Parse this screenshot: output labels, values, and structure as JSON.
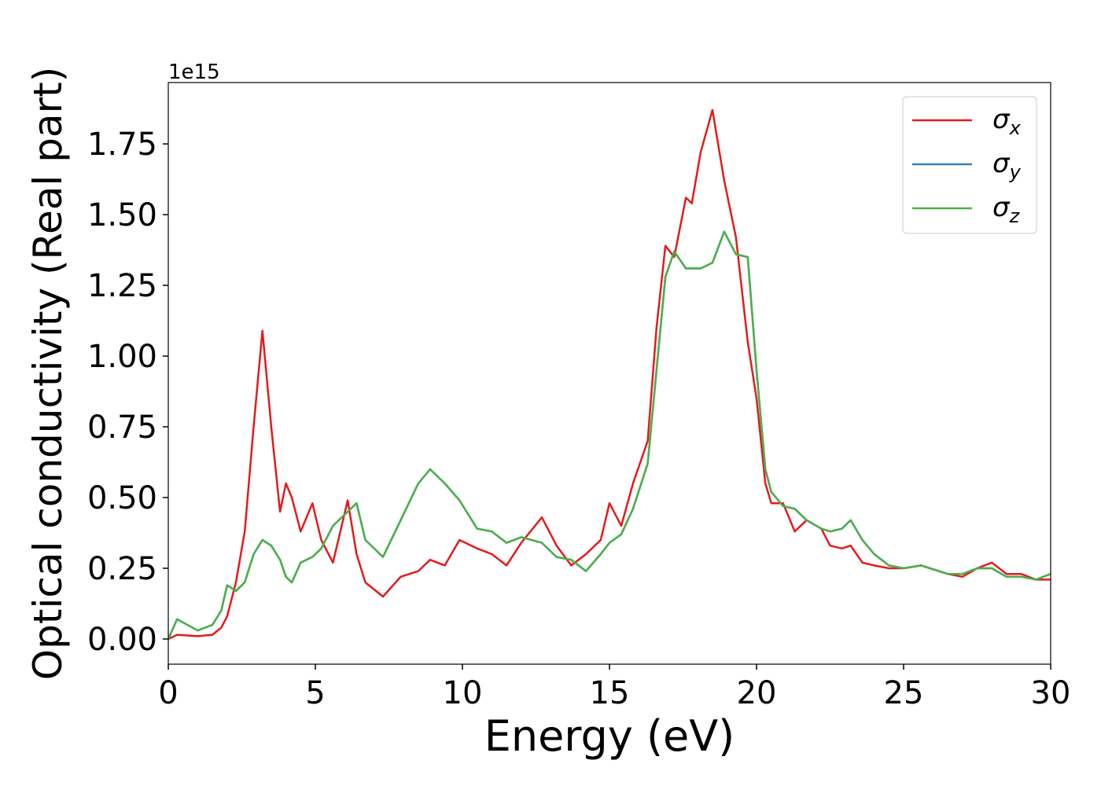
{
  "chart_data": {
    "type": "line",
    "xlabel": "Energy (eV)",
    "ylabel": "Optical conductivity (Real part)",
    "y_offset_label": "1e15",
    "x": [
      0,
      0.3,
      1,
      1.5,
      1.8,
      2.0,
      2.3,
      2.6,
      2.9,
      3.2,
      3.5,
      3.8,
      4.0,
      4.2,
      4.5,
      4.9,
      5.2,
      5.6,
      6.1,
      6.4,
      6.7,
      7.3,
      7.9,
      8.5,
      8.9,
      9.4,
      9.9,
      10.5,
      11.0,
      11.5,
      12.0,
      12.7,
      13.2,
      13.7,
      14.2,
      14.7,
      15.0,
      15.4,
      15.8,
      16.3,
      16.6,
      16.9,
      17.2,
      17.6,
      17.8,
      18.1,
      18.5,
      18.9,
      19.3,
      19.7,
      20.0,
      20.3,
      20.5,
      20.9,
      21.3,
      21.7,
      22.2,
      22.5,
      22.9,
      23.2,
      23.6,
      24.0,
      24.5,
      25.0,
      25.6,
      26.5,
      27.0,
      27.5,
      28.0,
      28.5,
      29.0,
      29.5,
      30.0
    ],
    "series": [
      {
        "name": "σx",
        "color": "#e41a1c",
        "values": [
          0.0,
          0.015,
          0.01,
          0.015,
          0.04,
          0.08,
          0.2,
          0.38,
          0.75,
          1.09,
          0.75,
          0.45,
          0.55,
          0.5,
          0.38,
          0.48,
          0.35,
          0.27,
          0.49,
          0.3,
          0.2,
          0.15,
          0.22,
          0.24,
          0.28,
          0.26,
          0.35,
          0.32,
          0.3,
          0.26,
          0.34,
          0.43,
          0.33,
          0.26,
          0.3,
          0.35,
          0.48,
          0.4,
          0.55,
          0.7,
          1.1,
          1.39,
          1.35,
          1.56,
          1.54,
          1.72,
          1.87,
          1.62,
          1.42,
          1.05,
          0.85,
          0.55,
          0.48,
          0.48,
          0.38,
          0.42,
          0.39,
          0.33,
          0.32,
          0.33,
          0.27,
          0.26,
          0.25,
          0.25,
          0.26,
          0.23,
          0.22,
          0.25,
          0.27,
          0.23,
          0.23,
          0.21,
          0.21
        ]
      },
      {
        "name": "σy",
        "color": "#377eb8",
        "values": [
          0.0,
          0.07,
          0.03,
          0.05,
          0.1,
          0.19,
          0.17,
          0.2,
          0.3,
          0.35,
          0.33,
          0.28,
          0.22,
          0.2,
          0.27,
          0.29,
          0.32,
          0.4,
          0.45,
          0.48,
          0.35,
          0.29,
          0.42,
          0.55,
          0.6,
          0.55,
          0.49,
          0.39,
          0.38,
          0.34,
          0.36,
          0.34,
          0.29,
          0.28,
          0.24,
          0.3,
          0.34,
          0.37,
          0.46,
          0.62,
          0.95,
          1.28,
          1.37,
          1.31,
          1.31,
          1.31,
          1.33,
          1.44,
          1.36,
          1.35,
          0.95,
          0.6,
          0.52,
          0.47,
          0.46,
          0.42,
          0.39,
          0.38,
          0.39,
          0.42,
          0.35,
          0.3,
          0.26,
          0.25,
          0.26,
          0.23,
          0.23,
          0.25,
          0.25,
          0.22,
          0.22,
          0.21,
          0.23
        ]
      },
      {
        "name": "σz",
        "color": "#4daf4a",
        "values": [
          0.0,
          0.07,
          0.03,
          0.05,
          0.1,
          0.19,
          0.17,
          0.2,
          0.3,
          0.35,
          0.33,
          0.28,
          0.22,
          0.2,
          0.27,
          0.29,
          0.32,
          0.4,
          0.45,
          0.48,
          0.35,
          0.29,
          0.42,
          0.55,
          0.6,
          0.55,
          0.49,
          0.39,
          0.38,
          0.34,
          0.36,
          0.34,
          0.29,
          0.28,
          0.24,
          0.3,
          0.34,
          0.37,
          0.46,
          0.62,
          0.95,
          1.28,
          1.37,
          1.31,
          1.31,
          1.31,
          1.33,
          1.44,
          1.36,
          1.35,
          0.95,
          0.6,
          0.52,
          0.47,
          0.46,
          0.42,
          0.39,
          0.38,
          0.39,
          0.42,
          0.35,
          0.3,
          0.26,
          0.25,
          0.26,
          0.23,
          0.23,
          0.25,
          0.25,
          0.22,
          0.22,
          0.21,
          0.23
        ]
      }
    ],
    "xlim": [
      0,
      30
    ],
    "xticks": [
      0,
      5,
      10,
      15,
      20,
      25,
      30
    ],
    "ylim": [
      -0.089,
      1.967
    ],
    "yticks": [
      {
        "value": 0,
        "label": "0.00"
      },
      {
        "value": 0.25,
        "label": "0.25"
      },
      {
        "value": 0.5,
        "label": "0.50"
      },
      {
        "value": 0.75,
        "label": "0.75"
      },
      {
        "value": 1.0,
        "label": "1.00"
      },
      {
        "value": 1.25,
        "label": "1.25"
      },
      {
        "value": 1.5,
        "label": "1.50"
      },
      {
        "value": 1.75,
        "label": "1.75"
      }
    ],
    "legend": "upper right",
    "grid": false
  }
}
